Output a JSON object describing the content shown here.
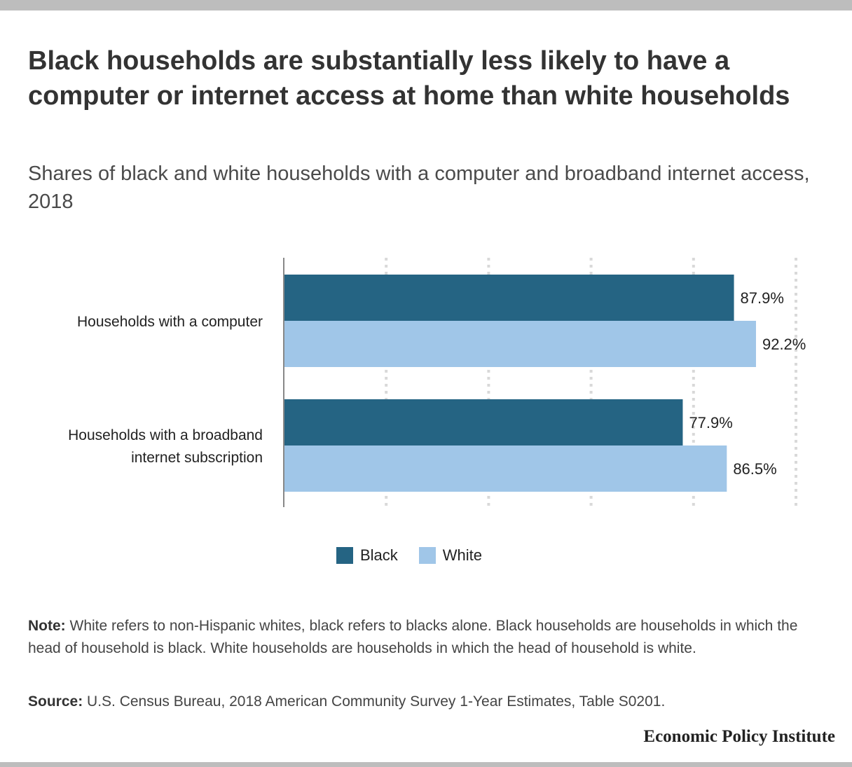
{
  "title": "Black households are substantially less likely to have a computer or internet access at home than white households",
  "subtitle": "Shares of black and white households with a computer and broadband internet access, 2018",
  "colors": {
    "black": "#256483",
    "white": "#a0c6e8",
    "grid": "#d9d9d9",
    "axis": "#888888"
  },
  "chart_data": {
    "type": "bar",
    "orientation": "horizontal",
    "categories": [
      "Households with a computer",
      "Households with a broadband internet subscription"
    ],
    "category_lines": [
      [
        "Households with a computer"
      ],
      [
        "Households with a broadband",
        "internet subscription"
      ]
    ],
    "series": [
      {
        "name": "Black",
        "values": [
          87.9,
          77.9
        ],
        "labels": [
          "87.9%",
          "77.9%"
        ]
      },
      {
        "name": "White",
        "values": [
          92.2,
          86.5
        ],
        "labels": [
          "92.2%",
          "86.5%"
        ]
      }
    ],
    "xlim": [
      0,
      100
    ],
    "grid": true,
    "legend_position": "bottom"
  },
  "legend": [
    {
      "label": "Black"
    },
    {
      "label": "White"
    }
  ],
  "note": {
    "label": "Note:",
    "text": " White refers to non-Hispanic whites, black refers to blacks alone. Black households are households in which the head of household is black. White households are households in which the head of household is white."
  },
  "source": {
    "label": "Source:",
    "text": " U.S. Census Bureau, 2018 American Community Survey 1-Year Estimates, Table S0201."
  },
  "brand": "Economic Policy Institute"
}
